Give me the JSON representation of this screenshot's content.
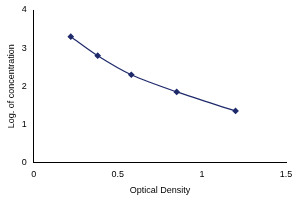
{
  "chart_data": {
    "type": "line",
    "x_label": "Optical Density",
    "y_label": "Log. of concentration",
    "x": [
      0.22,
      0.38,
      0.58,
      0.85,
      1.2
    ],
    "values": [
      3.3,
      2.8,
      2.3,
      1.85,
      1.35
    ],
    "color": "#1f2a6b",
    "marker": "diamond",
    "line_style": "solid",
    "xlim": [
      0,
      1.5
    ],
    "xticks": [
      0,
      0.5,
      1,
      1.5
    ],
    "ylim": [
      0,
      4
    ],
    "yticks": [
      0,
      1,
      2,
      3,
      4
    ],
    "grid": false
  }
}
